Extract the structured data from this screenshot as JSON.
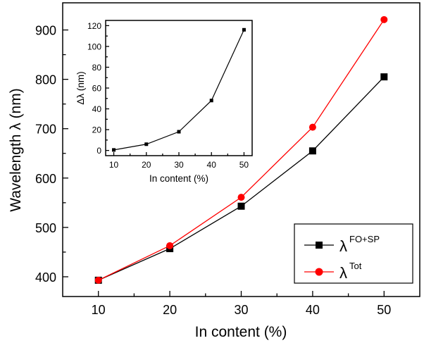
{
  "chart_data": [
    {
      "type": "line",
      "title": "",
      "xlabel": "In content (%)",
      "ylabel": "Wavelength λ (nm)",
      "x": [
        10,
        20,
        30,
        40,
        50
      ],
      "xticks": [
        "10",
        "20",
        "30",
        "40",
        "50"
      ],
      "yticks": [
        "400",
        "500",
        "600",
        "700",
        "800",
        "900"
      ],
      "xlim": [
        5,
        55
      ],
      "ylim": [
        360,
        955
      ],
      "series": [
        {
          "name": "FO+SP",
          "legend_base": "λ",
          "legend_sup": "FO+SP",
          "color": "#000000",
          "marker": "square",
          "values": [
            393,
            457,
            543,
            655,
            805
          ]
        },
        {
          "name": "Tot",
          "legend_base": "λ",
          "legend_sup": "Tot",
          "color": "#ff0000",
          "marker": "circle",
          "values": [
            393,
            463,
            561,
            703,
            921
          ]
        }
      ],
      "legend_position": "bottom-right"
    },
    {
      "type": "line",
      "title": "",
      "xlabel": "In content (%)",
      "ylabel": "Δλ (nm)",
      "x": [
        10,
        20,
        30,
        40,
        50
      ],
      "xticks": [
        "10",
        "20",
        "30",
        "40",
        "50"
      ],
      "yticks": [
        "0",
        "20",
        "40",
        "60",
        "80",
        "100",
        "120"
      ],
      "xlim": [
        7.5,
        52.5
      ],
      "ylim": [
        -5,
        125
      ],
      "series": [
        {
          "name": "Δλ",
          "color": "#000000",
          "marker": "square",
          "values": [
            0.5,
            6,
            18,
            48,
            116
          ]
        }
      ]
    }
  ]
}
